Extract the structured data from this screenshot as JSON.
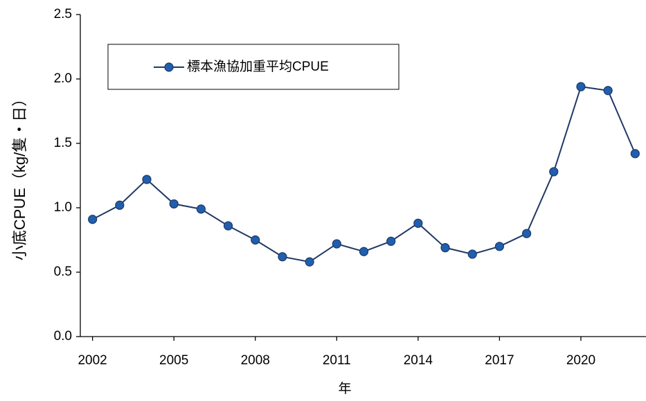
{
  "chart_data": {
    "type": "line",
    "x": [
      2002,
      2003,
      2004,
      2005,
      2006,
      2007,
      2008,
      2009,
      2010,
      2011,
      2012,
      2013,
      2014,
      2015,
      2016,
      2017,
      2018,
      2019,
      2020,
      2021,
      2022
    ],
    "series": [
      {
        "name": "標本漁協加重平均CPUE",
        "color": "#1f5fae",
        "values": [
          0.91,
          1.02,
          1.22,
          1.03,
          0.99,
          0.86,
          0.75,
          0.62,
          0.58,
          0.72,
          0.66,
          0.74,
          0.88,
          0.69,
          0.64,
          0.7,
          0.8,
          1.28,
          1.94,
          1.91,
          1.42
        ]
      }
    ],
    "xlabel": "年",
    "ylabel": "小底CPUE（kg/隻・日）",
    "xlim": [
      2001.55,
      2022.4
    ],
    "xticks": [
      2002,
      2005,
      2008,
      2011,
      2014,
      2017,
      2020
    ],
    "ylim": [
      0,
      2.5
    ],
    "yticks": [
      {
        "value": 0,
        "label": "0.0"
      },
      {
        "value": 0.5,
        "label": "0.5"
      },
      {
        "value": 1,
        "label": "1.0"
      },
      {
        "value": 1.5,
        "label": "1.5"
      },
      {
        "value": 2,
        "label": "2.0"
      },
      {
        "value": 2.5,
        "label": "2.5"
      }
    ],
    "line_color": "#1f3864",
    "legend": "upper left"
  }
}
